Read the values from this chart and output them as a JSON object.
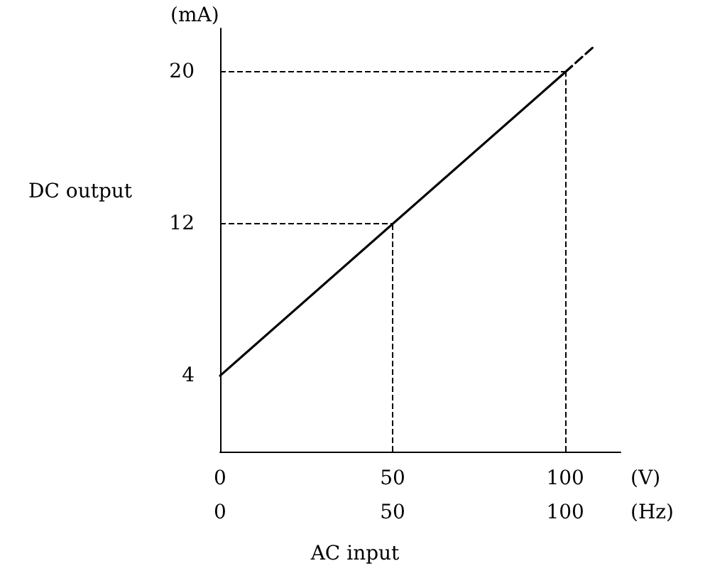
{
  "chart_data": {
    "type": "line",
    "xlabel": "AC input",
    "ylabel": "DC output",
    "annotations": [
      "(mA)",
      "(V)",
      "(Hz)"
    ],
    "xlim": [
      0,
      116
    ],
    "xticks": [
      0,
      50,
      100
    ],
    "x2lim": [
      0,
      116
    ],
    "x2ticks": [
      0,
      50,
      100
    ],
    "ylim": [
      0,
      22.3
    ],
    "yticks": [
      4,
      12,
      20
    ],
    "series": [
      {
        "x": [
          0,
          100
        ],
        "values": [
          4,
          20
        ],
        "color": "#000000",
        "line_style": "solid"
      },
      {
        "x": [
          100,
          108
        ],
        "values": [
          20,
          21.3
        ],
        "color": "#000000",
        "line_style": "dashed"
      }
    ],
    "ref_lines": [
      {
        "axis": "y",
        "value": 12,
        "line_style": "dashed"
      },
      {
        "axis": "x",
        "value": 50,
        "line_style": "dashed"
      },
      {
        "axis": "y",
        "value": 20,
        "line_style": "dashed"
      },
      {
        "axis": "x",
        "value": 100,
        "line_style": "dashed"
      }
    ],
    "grid": false,
    "marker": "none"
  }
}
